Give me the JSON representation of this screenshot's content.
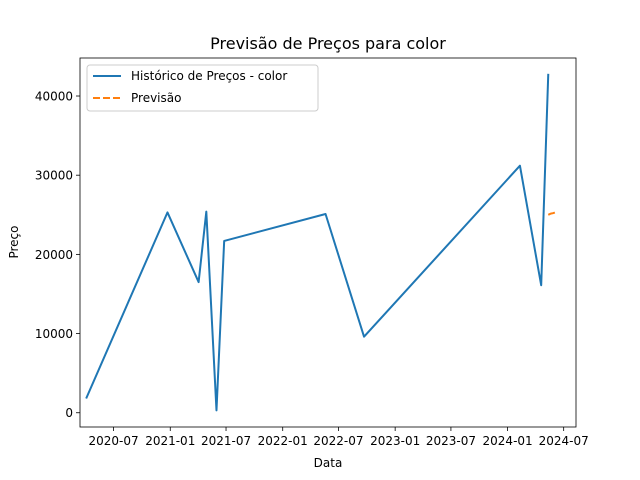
{
  "chart_data": {
    "type": "line",
    "title": "Previsão de Preços para color",
    "xlabel": "Data",
    "ylabel": "Preço",
    "x_axis_type": "date",
    "xlim": [
      "2020-03-14",
      "2024-08-10"
    ],
    "ylim": [
      -1800,
      44800
    ],
    "x_ticks": [
      {
        "date": "2020-07-01",
        "label": "2020-07"
      },
      {
        "date": "2021-01-01",
        "label": "2021-01"
      },
      {
        "date": "2021-07-01",
        "label": "2021-07"
      },
      {
        "date": "2022-01-01",
        "label": "2022-01"
      },
      {
        "date": "2022-07-01",
        "label": "2022-07"
      },
      {
        "date": "2023-01-01",
        "label": "2023-01"
      },
      {
        "date": "2023-07-01",
        "label": "2023-07"
      },
      {
        "date": "2024-01-01",
        "label": "2024-01"
      },
      {
        "date": "2024-07-01",
        "label": "2024-07"
      }
    ],
    "y_ticks": [
      {
        "value": 0,
        "label": "0"
      },
      {
        "value": 10000,
        "label": "10000"
      },
      {
        "value": 20000,
        "label": "20000"
      },
      {
        "value": 30000,
        "label": "30000"
      },
      {
        "value": 40000,
        "label": "40000"
      }
    ],
    "grid": false,
    "legend_position": "top-left",
    "series": [
      {
        "name": "Histórico de Preços - color",
        "color": "#1f77b4",
        "style": "solid",
        "points": [
          {
            "x": "2020-04-03",
            "y": 1800
          },
          {
            "x": "2020-12-23",
            "y": 25300
          },
          {
            "x": "2021-04-03",
            "y": 16500
          },
          {
            "x": "2021-04-28",
            "y": 25400
          },
          {
            "x": "2021-05-31",
            "y": 300
          },
          {
            "x": "2021-06-25",
            "y": 21700
          },
          {
            "x": "2022-05-20",
            "y": 25100
          },
          {
            "x": "2022-09-22",
            "y": 9600
          },
          {
            "x": "2024-02-10",
            "y": 31200
          },
          {
            "x": "2024-04-19",
            "y": 16100
          },
          {
            "x": "2024-05-12",
            "y": 42800
          }
        ]
      },
      {
        "name": "Previsão",
        "color": "#ff7f0e",
        "style": "dashed",
        "points": [
          {
            "x": "2024-05-12",
            "y": 25000
          },
          {
            "x": "2024-05-20",
            "y": 25150
          },
          {
            "x": "2024-05-27",
            "y": 25200
          },
          {
            "x": "2024-06-04",
            "y": 25300
          }
        ]
      }
    ]
  }
}
